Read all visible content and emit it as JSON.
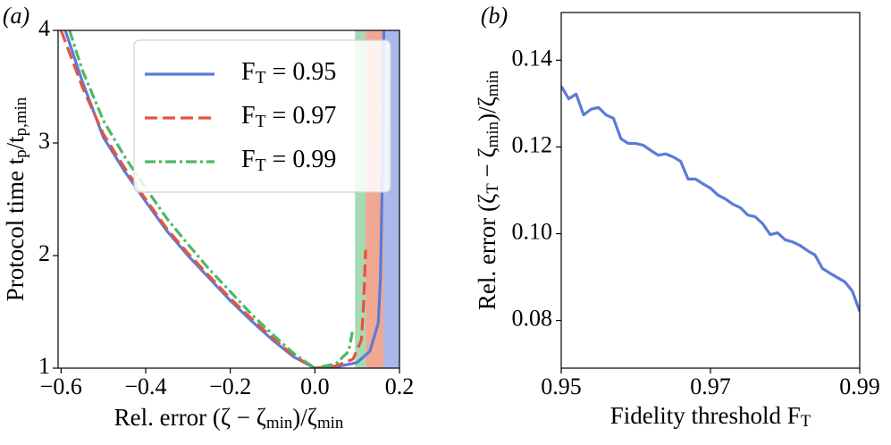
{
  "chart_data": [
    {
      "type": "line",
      "title": "(a)",
      "xlabel": "Rel. error (ζ − ζ_{min})/ζ_{min}",
      "ylabel": "Protocol time t_p/t_{p,min}",
      "xlim": [
        -0.607,
        0.2
      ],
      "ylim": [
        1,
        4
      ],
      "xticks": [
        {
          "value": -0.6,
          "label": "−0.6"
        },
        {
          "value": -0.4,
          "label": "−0.4"
        },
        {
          "value": -0.2,
          "label": "−0.2"
        },
        {
          "value": 0,
          "label": "0.0"
        },
        0.2
      ],
      "yticks": [
        1,
        2,
        3,
        4
      ],
      "legend": "upper right",
      "spans": [
        {
          "x0": 0.095,
          "x1": 0.12,
          "color": "#a6dab3"
        },
        {
          "x0": 0.12,
          "x1": 0.162,
          "color": "#f2a793"
        },
        {
          "x0": 0.162,
          "x1": 0.2,
          "color": "#aab9e9"
        }
      ],
      "series": [
        {
          "name": "F_T = 0.95",
          "color": "#5b7bd8",
          "dash": "solid",
          "x": [
            -0.59,
            -0.55,
            -0.5,
            -0.45,
            -0.4,
            -0.35,
            -0.3,
            -0.25,
            -0.2,
            -0.15,
            -0.1,
            -0.05,
            0,
            0.05,
            0.1,
            0.13,
            0.15,
            0.155,
            0.16,
            0.163
          ],
          "values": [
            4,
            3.55,
            3.05,
            2.75,
            2.48,
            2.22,
            2.0,
            1.8,
            1.6,
            1.42,
            1.25,
            1.1,
            1.0,
            1.01,
            1.05,
            1.15,
            1.4,
            1.8,
            2.8,
            4
          ]
        },
        {
          "name": "F_T = 0.97",
          "color": "#e4553b",
          "dash": "dashed",
          "x": [
            -0.6,
            -0.55,
            -0.5,
            -0.45,
            -0.4,
            -0.35,
            -0.3,
            -0.25,
            -0.2,
            -0.15,
            -0.1,
            -0.05,
            0,
            0.05,
            0.09,
            0.11,
            0.115,
            0.12
          ],
          "values": [
            4,
            3.5,
            3.08,
            2.78,
            2.5,
            2.24,
            2.02,
            1.82,
            1.62,
            1.44,
            1.27,
            1.11,
            1.0,
            1.02,
            1.08,
            1.25,
            1.55,
            2.05
          ]
        },
        {
          "name": "F_T = 0.99",
          "color": "#4db864",
          "dash": "dashdot",
          "x": [
            -0.58,
            -0.55,
            -0.5,
            -0.45,
            -0.4,
            -0.35,
            -0.3,
            -0.25,
            -0.2,
            -0.15,
            -0.1,
            -0.05,
            0,
            0.05,
            0.08,
            0.09
          ],
          "values": [
            4,
            3.65,
            3.2,
            2.88,
            2.6,
            2.33,
            2.1,
            1.88,
            1.68,
            1.48,
            1.3,
            1.13,
            1.0,
            1.04,
            1.15,
            1.35
          ]
        }
      ]
    },
    {
      "type": "line",
      "title": "(b)",
      "xlabel": "Fidelity threshold F_T",
      "ylabel": "Rel. error (ζ_T − ζ_{min})/ζ_{min}",
      "xlim": [
        0.95,
        0.99
      ],
      "ylim": [
        0.069,
        0.151
      ],
      "xticks": [
        0.95,
        0.97,
        0.99
      ],
      "yticks": [
        0.08,
        {
          "value": 0.1,
          "label": "0.10"
        },
        0.12,
        0.14
      ],
      "series": [
        {
          "color": "#5b7bd8",
          "dash": "solid",
          "x": [
            0.95,
            0.951,
            0.952,
            0.953,
            0.954,
            0.955,
            0.956,
            0.957,
            0.958,
            0.959,
            0.96,
            0.961,
            0.962,
            0.963,
            0.964,
            0.965,
            0.966,
            0.967,
            0.968,
            0.969,
            0.97,
            0.971,
            0.972,
            0.973,
            0.974,
            0.975,
            0.976,
            0.977,
            0.978,
            0.979,
            0.98,
            0.981,
            0.982,
            0.983,
            0.984,
            0.985,
            0.986,
            0.987,
            0.988,
            0.989,
            0.99
          ],
          "values": [
            0.134,
            0.1311,
            0.1322,
            0.1274,
            0.1287,
            0.1291,
            0.1274,
            0.1266,
            0.1219,
            0.1208,
            0.1208,
            0.1204,
            0.1192,
            0.1181,
            0.1184,
            0.1177,
            0.1167,
            0.1126,
            0.1126,
            0.1115,
            0.1105,
            0.1089,
            0.108,
            0.1068,
            0.106,
            0.1043,
            0.1039,
            0.1023,
            0.0998,
            0.1002,
            0.0986,
            0.0981,
            0.0973,
            0.0961,
            0.0951,
            0.092,
            0.0909,
            0.0899,
            0.0889,
            0.0868,
            0.0821
          ]
        }
      ]
    }
  ]
}
